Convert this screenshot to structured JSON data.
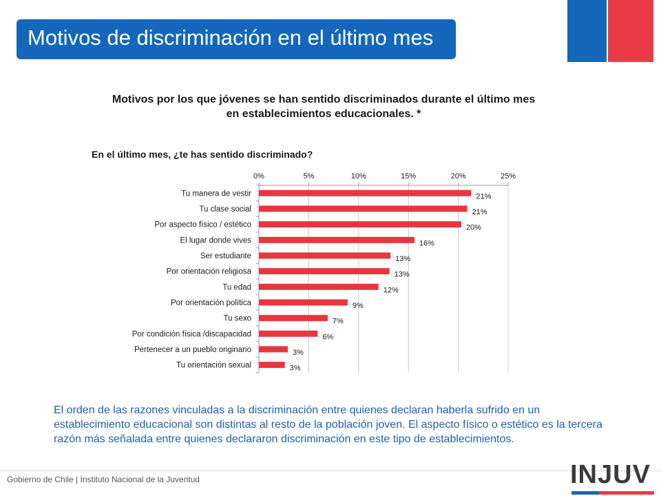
{
  "header": {
    "title": "Motivos de discriminación en el último mes"
  },
  "chart_data": {
    "type": "bar",
    "orientation": "horizontal",
    "title_lines": [
      "Motivos por los que jóvenes se han sentido discriminados durante el último mes",
      "en establecimientos educacionales. *"
    ],
    "subtitle": "En el último mes, ¿te has sentido discriminado?",
    "categories": [
      "Tu manera de vestir",
      "Tu clase social",
      "Por aspecto físico / estético",
      "El lugar donde vives",
      "Ser estudiante",
      "Por orientación religiosa",
      "Tu edad",
      "Por orientación política",
      "Tu sexo",
      "Por condición física /discapacidad",
      "Pertenecer a un pueblo originario",
      "Tu orientación sexual"
    ],
    "values": [
      21,
      21,
      20,
      16,
      13,
      13,
      12,
      9,
      7,
      6,
      3,
      3
    ],
    "plotted_values": [
      21.3,
      20.9,
      20.3,
      15.6,
      13.2,
      13.1,
      12.0,
      8.9,
      6.9,
      5.9,
      2.9,
      2.6
    ],
    "data_labels": [
      "21%",
      "21%",
      "20%",
      "16%",
      "13%",
      "13%",
      "12%",
      "9%",
      "7%",
      "6%",
      "3%",
      "3%"
    ],
    "x_ticks": [
      "0%",
      "5%",
      "10%",
      "15%",
      "20%",
      "25%"
    ],
    "x_tick_values": [
      0,
      5,
      10,
      15,
      20,
      25
    ],
    "xlim": [
      0,
      25
    ],
    "x_axis_position": "top",
    "grid": true,
    "bar_color": "#e8363f"
  },
  "caption": "El orden de las razones vinculadas a la discriminación entre quienes declaran haberla sufrido en un establecimiento educacional son distintas al resto de la población joven. El aspecto físico o estético es la tercera razón más señalada entre quienes declararon discriminación en este tipo de establecimientos.",
  "footer": {
    "text": "Gobierno de Chile | Instituto Nacional de la Juventud",
    "logo": "INJUV"
  },
  "colors": {
    "brand_blue": "#1467ba",
    "brand_red": "#ea3a44",
    "caption_blue": "#1f5fae"
  }
}
